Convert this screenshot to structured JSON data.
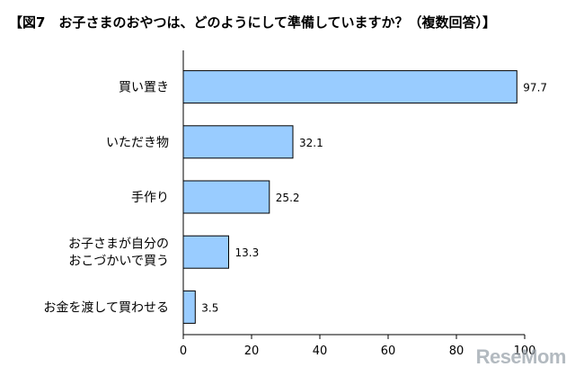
{
  "title": "【図7　お子さまのおやつは、どのようにして準備していますか？（複数回答）】",
  "watermark": "ReseMom",
  "chart_data": {
    "type": "bar",
    "orientation": "horizontal",
    "categories": [
      [
        "買い置き"
      ],
      [
        "いただき物"
      ],
      [
        "手作り"
      ],
      [
        "お子さまが自分の",
        "おこづかいで買う"
      ],
      [
        "お金を渡して買わせる"
      ]
    ],
    "values": [
      97.7,
      32.1,
      25.2,
      13.3,
      3.5
    ],
    "value_labels": [
      "97.7",
      "32.1",
      "25.2",
      "13.3",
      "3.5"
    ],
    "xlim": [
      0,
      100
    ],
    "xticks": [
      0,
      20,
      40,
      60,
      80,
      100
    ],
    "grid": false,
    "legend": "none",
    "colors": {
      "bar_fill": "#99ccff",
      "bar_stroke": "#000000",
      "axis": "#000000"
    }
  }
}
